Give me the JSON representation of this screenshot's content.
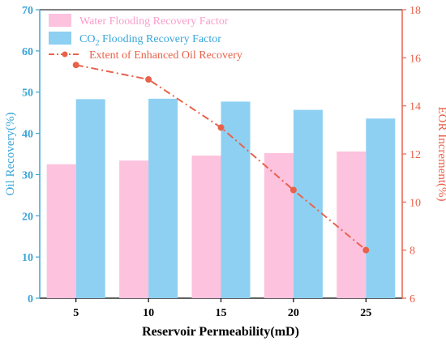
{
  "chart_data": {
    "type": "bar",
    "categories": [
      "5",
      "10",
      "15",
      "20",
      "25"
    ],
    "xlabel": "Reservoir Permeability(mD)",
    "ylabel": "Oil Recovery(%)",
    "ylabel_right": "EOR Increment(%)",
    "ylim": [
      0,
      70
    ],
    "ylim_right": [
      6,
      18
    ],
    "yticks": [
      "0",
      "10",
      "20",
      "30",
      "40",
      "50",
      "60",
      "70"
    ],
    "yticks_right": [
      "6",
      "8",
      "10",
      "12",
      "14",
      "16",
      "18"
    ],
    "series": [
      {
        "name": "Water Flooding Recovery Factor",
        "type": "bar",
        "axis": "left",
        "values": [
          32.5,
          33.4,
          34.6,
          35.2,
          35.6
        ]
      },
      {
        "name": "CO2 Flooding Recovery Factor",
        "type": "bar",
        "axis": "left",
        "values": [
          48.3,
          48.4,
          47.7,
          45.7,
          43.6
        ]
      },
      {
        "name": "Extent of Enhanced Oil Recovery",
        "type": "line",
        "axis": "right",
        "values": [
          15.7,
          15.1,
          13.1,
          10.5,
          8.0
        ]
      }
    ],
    "legend": [
      "Water Flooding Recovery Factor",
      "CO",
      "2",
      " Flooding Recovery Factor",
      "Extent of Enhanced Oil Recovery"
    ],
    "legend_position": "top-left",
    "grid": false,
    "colors": {
      "water": "#fcc2de",
      "co2": "#8ed0f2",
      "line": "#e8624b",
      "left_axis": "#3aa5d8",
      "right_axis": "#e8624b",
      "text": "#000000"
    }
  }
}
